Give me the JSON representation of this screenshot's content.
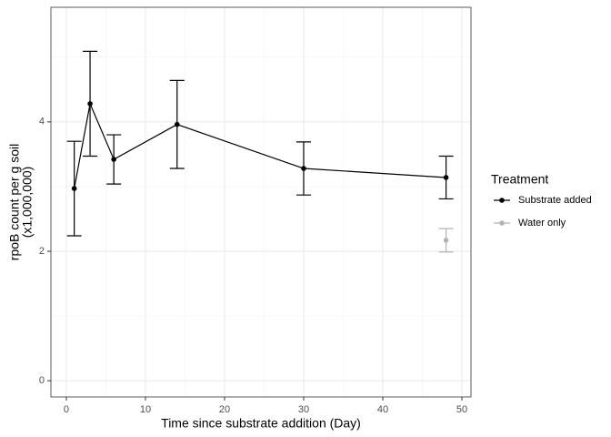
{
  "chart_data": {
    "type": "line",
    "xlabel": "Time since substrate addition (Day)",
    "ylabel": [
      "rpoB count per g soil",
      "(x1,000,000)"
    ],
    "legend_title": "Treatment",
    "legend": "right",
    "grid": true,
    "xlim": [
      -1.95,
      51.15
    ],
    "xticks": [
      0,
      10,
      20,
      30,
      40,
      50
    ],
    "ylim": [
      -0.25,
      5.77
    ],
    "yticks": [
      0,
      2,
      4
    ],
    "series": [
      {
        "name": "Substrate added",
        "color": "#000000",
        "x": [
          1,
          3,
          6,
          14,
          30,
          48
        ],
        "values": [
          2.97,
          4.28,
          3.42,
          3.96,
          3.28,
          3.14
        ],
        "errors": [
          0.73,
          0.81,
          0.38,
          0.68,
          0.41,
          0.33
        ]
      },
      {
        "name": "Water only",
        "color": "#b3b3b3",
        "x": [
          48
        ],
        "values": [
          2.17
        ],
        "errors": [
          0.18
        ]
      }
    ]
  }
}
